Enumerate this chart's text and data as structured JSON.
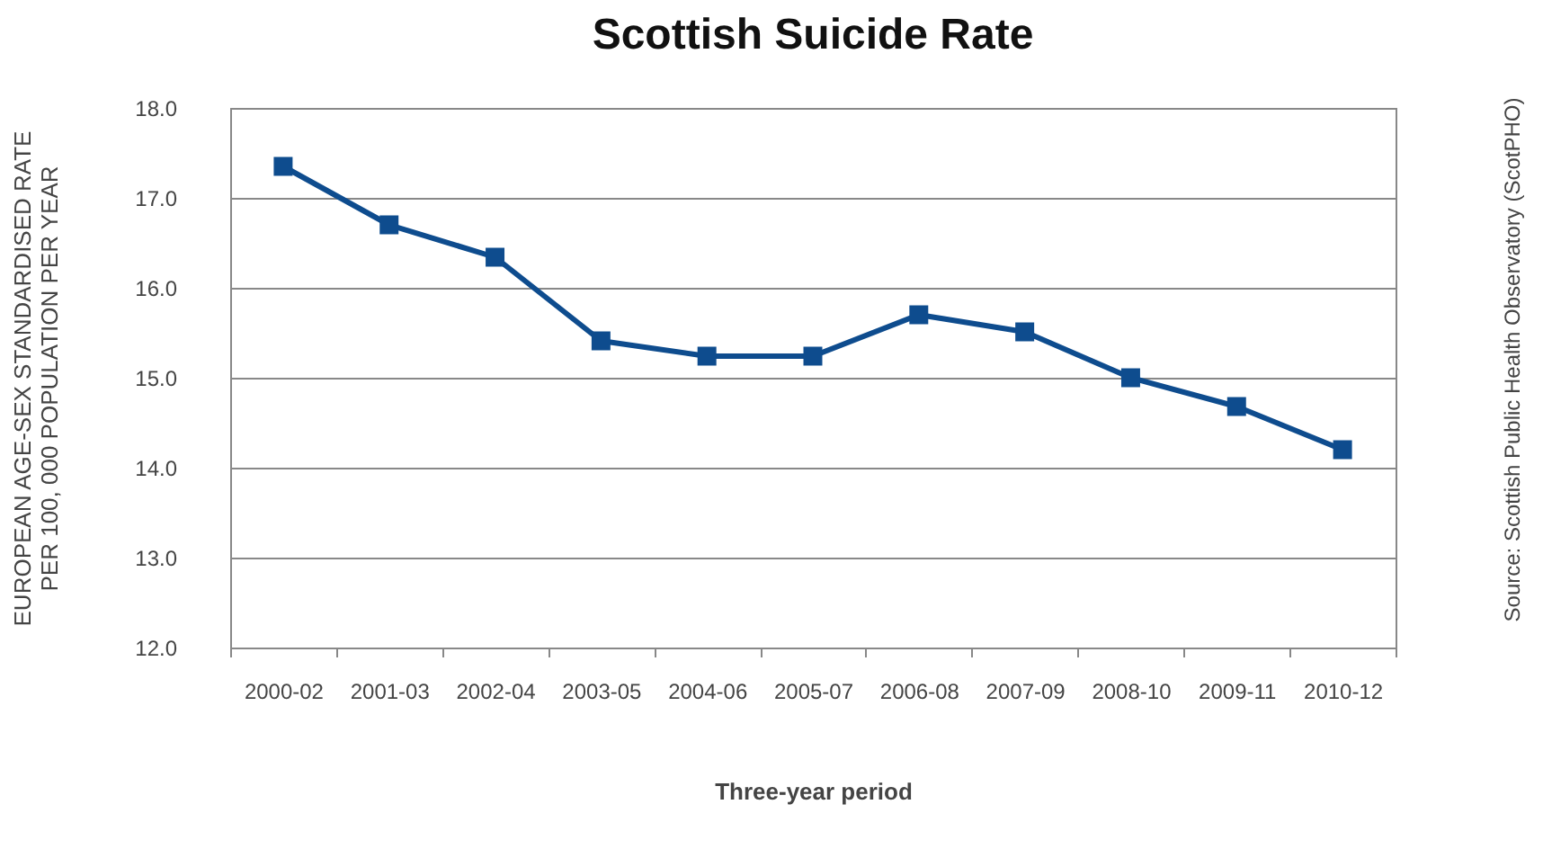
{
  "chart_data": {
    "type": "line",
    "title": "Scottish Suicide Rate",
    "xlabel": "Three-year period",
    "ylabel": "EUROPEAN AGE-SEX STANDARDISED RATE\nPER 100, 000 POPULATION PER YEAR",
    "annotations": [
      "Source: Scottish Public Health Observatory (ScotPHO)"
    ],
    "categories": [
      "2000-02",
      "2001-03",
      "2002-04",
      "2003-05",
      "2004-06",
      "2005-07",
      "2006-08",
      "2007-09",
      "2008-10",
      "2009-11",
      "2010-12"
    ],
    "series": [
      {
        "color": "#0e4c8e",
        "values": [
          17.35,
          16.7,
          16.34,
          15.41,
          15.24,
          15.24,
          15.7,
          15.51,
          15.0,
          14.68,
          14.2
        ]
      }
    ],
    "ylim": [
      12,
      18
    ],
    "yticks": [
      {
        "value": 12,
        "label": "12.0"
      },
      {
        "value": 13,
        "label": "13.0"
      },
      {
        "value": 14,
        "label": "14.0"
      },
      {
        "value": 15,
        "label": "15.0"
      },
      {
        "value": 16,
        "label": "16.0"
      },
      {
        "value": 17,
        "label": "17.0"
      },
      {
        "value": 18,
        "label": "18.0"
      }
    ],
    "grid": "y",
    "marker": "square",
    "line_style": "solid"
  }
}
